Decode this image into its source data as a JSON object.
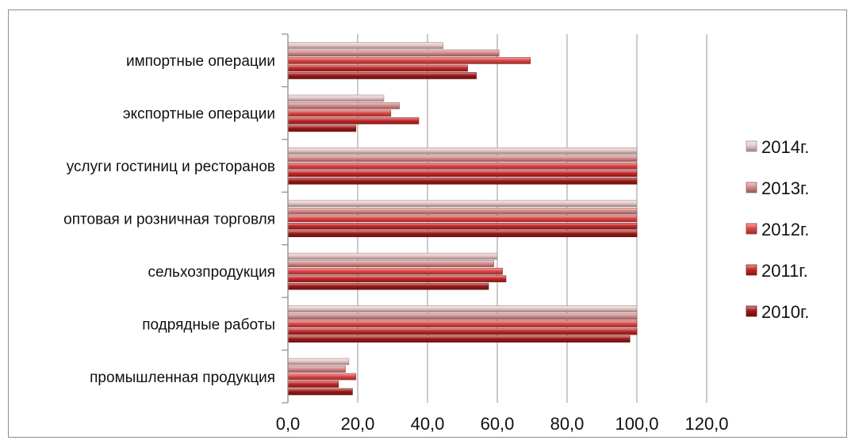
{
  "chart_data": {
    "type": "bar",
    "orientation": "horizontal",
    "categories": [
      "импортные операции",
      "экспортные операции",
      "услуги гостиниц и ресторанов",
      "оптовая и розничная торговля",
      "сельхозпродукция",
      "подрядные работы",
      "промышленная продукция"
    ],
    "series": [
      {
        "name": "2014г.",
        "color": "#e8c8c8",
        "values": [
          44.5,
          27.5,
          100,
          100,
          60,
          100,
          17.5
        ]
      },
      {
        "name": "2013г.",
        "color": "#d98c8c",
        "values": [
          60.5,
          32,
          100,
          100,
          59,
          100,
          16.5
        ]
      },
      {
        "name": "2012г.",
        "color": "#e04848",
        "values": [
          69.5,
          29.5,
          100,
          100,
          61.5,
          100,
          19.5
        ]
      },
      {
        "name": "2011г.",
        "color": "#c62828",
        "values": [
          51.5,
          37.5,
          100,
          100,
          62.5,
          100,
          14.5
        ]
      },
      {
        "name": "2010г.",
        "color": "#a01818",
        "values": [
          54,
          19.5,
          100,
          100,
          57.5,
          98,
          18.5
        ]
      }
    ],
    "x_ticks": [
      "0,0",
      "20,0",
      "40,0",
      "60,0",
      "80,0",
      "100,0",
      "120,0"
    ],
    "xlim": [
      0,
      120
    ],
    "grid": true,
    "legend_position": "right",
    "title": "",
    "xlabel": "",
    "ylabel": ""
  }
}
